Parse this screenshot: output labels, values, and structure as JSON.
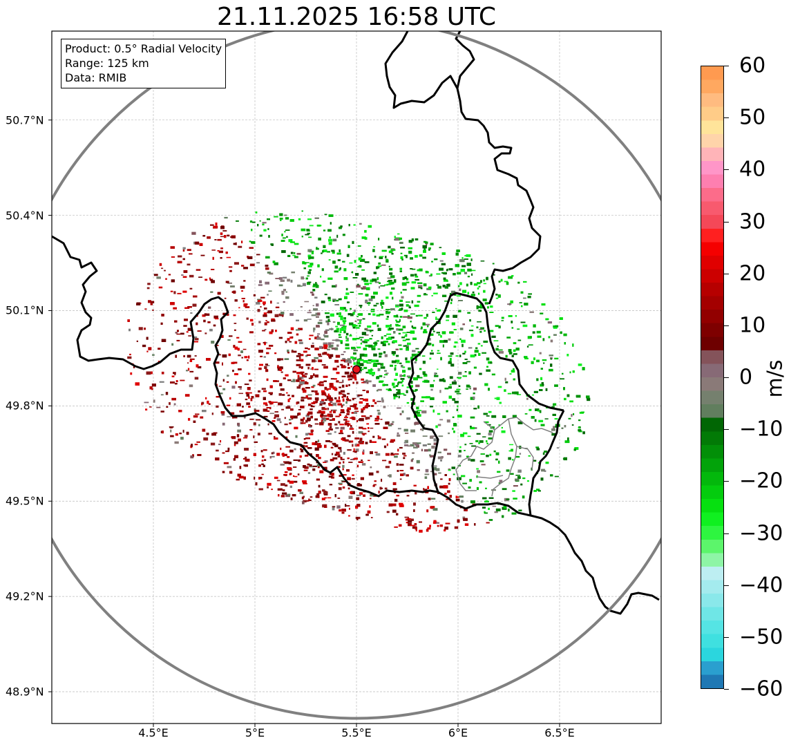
{
  "title": "21.11.2025 16:58 UTC",
  "info_box": {
    "product": "Product: 0.5° Radial Velocity",
    "range": "Range: 125 km",
    "data": "Data: RMIB"
  },
  "map": {
    "lon_range": [
      4.0,
      7.0
    ],
    "lat_range": [
      48.8,
      50.98
    ],
    "radar_site": {
      "lon": 5.5,
      "lat": 49.915
    },
    "range_ring_km": 125,
    "lat_ticks": [
      "50.7°N",
      "50.4°N",
      "50.1°N",
      "49.8°N",
      "49.5°N",
      "49.2°N",
      "48.9°N"
    ],
    "lon_ticks": [
      "4.5°E",
      "5°E",
      "5.5°E",
      "6°E",
      "6.5°E"
    ],
    "lat_tick_values": [
      50.7,
      50.4,
      50.1,
      49.8,
      49.5,
      49.2,
      48.9
    ],
    "lon_tick_values": [
      4.5,
      5.0,
      5.5,
      6.0,
      6.5
    ],
    "grid": true,
    "border_color": "#000000",
    "admin_border_color": "#808080",
    "ring_color": "#808080",
    "site_marker_color": "#e8131c"
  },
  "colorbar": {
    "label": "m/s",
    "min": -60,
    "max": 60,
    "ticks": [
      "60",
      "50",
      "40",
      "30",
      "20",
      "10",
      "0",
      "−10",
      "−20",
      "−30",
      "−40",
      "−50",
      "−60"
    ],
    "tick_values": [
      60,
      50,
      40,
      30,
      20,
      10,
      0,
      -10,
      -20,
      -30,
      -40,
      -50,
      -60
    ],
    "colors": [
      "#1f78b4",
      "#2a9fcf",
      "#2bd6de",
      "#3fe0e0",
      "#55e4e4",
      "#6fe6e6",
      "#8ae8ea",
      "#a4ebee",
      "#bdeef2",
      "#8ef5a6",
      "#5cf56b",
      "#2ef540",
      "#10f020",
      "#06e010",
      "#04cc0e",
      "#03b80c",
      "#02a30a",
      "#028f08",
      "#027a06",
      "#016604",
      "#617e5e",
      "#75806e",
      "#8a7a78",
      "#876a76",
      "#84535a",
      "#6e0000",
      "#7e0000",
      "#920000",
      "#a40000",
      "#b60000",
      "#cc0000",
      "#e00000",
      "#f50000",
      "#ff2020",
      "#f44858",
      "#f85a6e",
      "#fc6c8a",
      "#fe7fb0",
      "#ff96c8",
      "#ffb4b8",
      "#ffd4aa",
      "#ffe49a",
      "#ffcc88",
      "#ffbb80",
      "#ffa860",
      "#ff9a50"
    ]
  }
}
